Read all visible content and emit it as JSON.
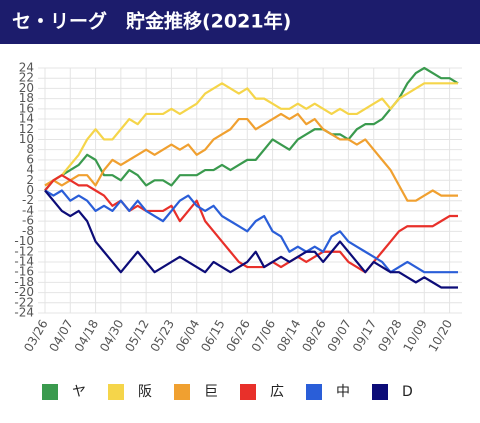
{
  "chart_data": {
    "type": "line",
    "title": "セ・リーグ　貯金推移(2021年)",
    "categories": [
      "03/26",
      null,
      null,
      "04/07",
      null,
      null,
      "04/18",
      null,
      null,
      "04/30",
      null,
      null,
      "05/12",
      null,
      null,
      "05/23",
      null,
      null,
      "06/04",
      null,
      null,
      "06/15",
      null,
      null,
      "06/26",
      null,
      null,
      "07/06",
      null,
      null,
      "08/14",
      null,
      null,
      "08/26",
      null,
      null,
      "09/07",
      null,
      null,
      "09/17",
      null,
      null,
      "09/28",
      null,
      null,
      "10/09",
      null,
      null,
      "10/20",
      null
    ],
    "series": [
      {
        "name": "ヤ",
        "color": "#3a9a4e",
        "values": [
          0,
          2,
          3,
          4,
          5,
          7,
          6,
          3,
          3,
          2,
          4,
          3,
          1,
          2,
          2,
          1,
          3,
          3,
          3,
          4,
          4,
          5,
          4,
          5,
          6,
          6,
          8,
          10,
          9,
          8,
          10,
          11,
          12,
          12,
          11,
          11,
          10,
          12,
          13,
          13,
          14,
          16,
          18,
          21,
          23,
          24,
          23,
          22,
          22,
          21
        ]
      },
      {
        "name": "阪",
        "color": "#f5d54a",
        "values": [
          1,
          2,
          3,
          5,
          7,
          10,
          12,
          10,
          10,
          12,
          14,
          13,
          15,
          15,
          15,
          16,
          15,
          16,
          17,
          19,
          20,
          21,
          20,
          19,
          20,
          18,
          18,
          17,
          16,
          16,
          17,
          16,
          17,
          16,
          15,
          16,
          15,
          15,
          16,
          17,
          18,
          16,
          18,
          19,
          20,
          21,
          21,
          21,
          21,
          21
        ]
      },
      {
        "name": "巨",
        "color": "#f0a030",
        "values": [
          1,
          2,
          1,
          2,
          3,
          3,
          1,
          4,
          6,
          5,
          6,
          7,
          8,
          7,
          8,
          9,
          8,
          9,
          7,
          8,
          10,
          11,
          12,
          14,
          14,
          12,
          13,
          14,
          15,
          14,
          15,
          13,
          14,
          12,
          11,
          10,
          10,
          9,
          10,
          8,
          6,
          4,
          1,
          -2,
          -2,
          -1,
          0,
          -1,
          -1,
          -1
        ]
      },
      {
        "name": "広",
        "color": "#e8302a",
        "values": [
          0,
          2,
          3,
          2,
          1,
          1,
          0,
          -1,
          -3,
          -2,
          -4,
          -3,
          -4,
          -4,
          -4,
          -3,
          -6,
          -4,
          -2,
          -6,
          -8,
          -10,
          -12,
          -14,
          -15,
          -15,
          -15,
          -14,
          -15,
          -14,
          -13,
          -14,
          -13,
          -12,
          -12,
          -12,
          -14,
          -15,
          -16,
          -14,
          -12,
          -10,
          -8,
          -7,
          -7,
          -7,
          -7,
          -6,
          -5,
          -5
        ]
      },
      {
        "name": "中",
        "color": "#2a5ed8",
        "values": [
          0,
          -1,
          0,
          -2,
          -1,
          -2,
          -4,
          -3,
          -4,
          -2,
          -4,
          -2,
          -4,
          -5,
          -6,
          -4,
          -2,
          -1,
          -3,
          -4,
          -3,
          -5,
          -6,
          -7,
          -8,
          -6,
          -5,
          -8,
          -9,
          -12,
          -11,
          -12,
          -11,
          -12,
          -9,
          -8,
          -10,
          -11,
          -12,
          -13,
          -14,
          -16,
          -15,
          -14,
          -15,
          -16,
          -16,
          -16,
          -16,
          -16
        ]
      },
      {
        "name": "D",
        "color": "#0c0c78",
        "values": [
          0,
          -2,
          -4,
          -5,
          -4,
          -6,
          -10,
          -12,
          -14,
          -16,
          -14,
          -12,
          -14,
          -16,
          -15,
          -14,
          -13,
          -14,
          -15,
          -16,
          -14,
          -15,
          -16,
          -15,
          -14,
          -12,
          -15,
          -14,
          -13,
          -14,
          -13,
          -12,
          -12,
          -14,
          -12,
          -10,
          -12,
          -14,
          -16,
          -14,
          -15,
          -16,
          -16,
          -17,
          -18,
          -17,
          -18,
          -19,
          -19,
          -19
        ]
      }
    ],
    "ylim": [
      -24,
      24
    ],
    "yticks": [
      24,
      22,
      20,
      18,
      16,
      14,
      12,
      10,
      8,
      6,
      4,
      2,
      0,
      -2,
      -4,
      -6,
      -8,
      -10,
      -12,
      -14,
      -16,
      -18,
      -20,
      -22,
      -24
    ],
    "grid": true,
    "legend_position": "bottom"
  }
}
